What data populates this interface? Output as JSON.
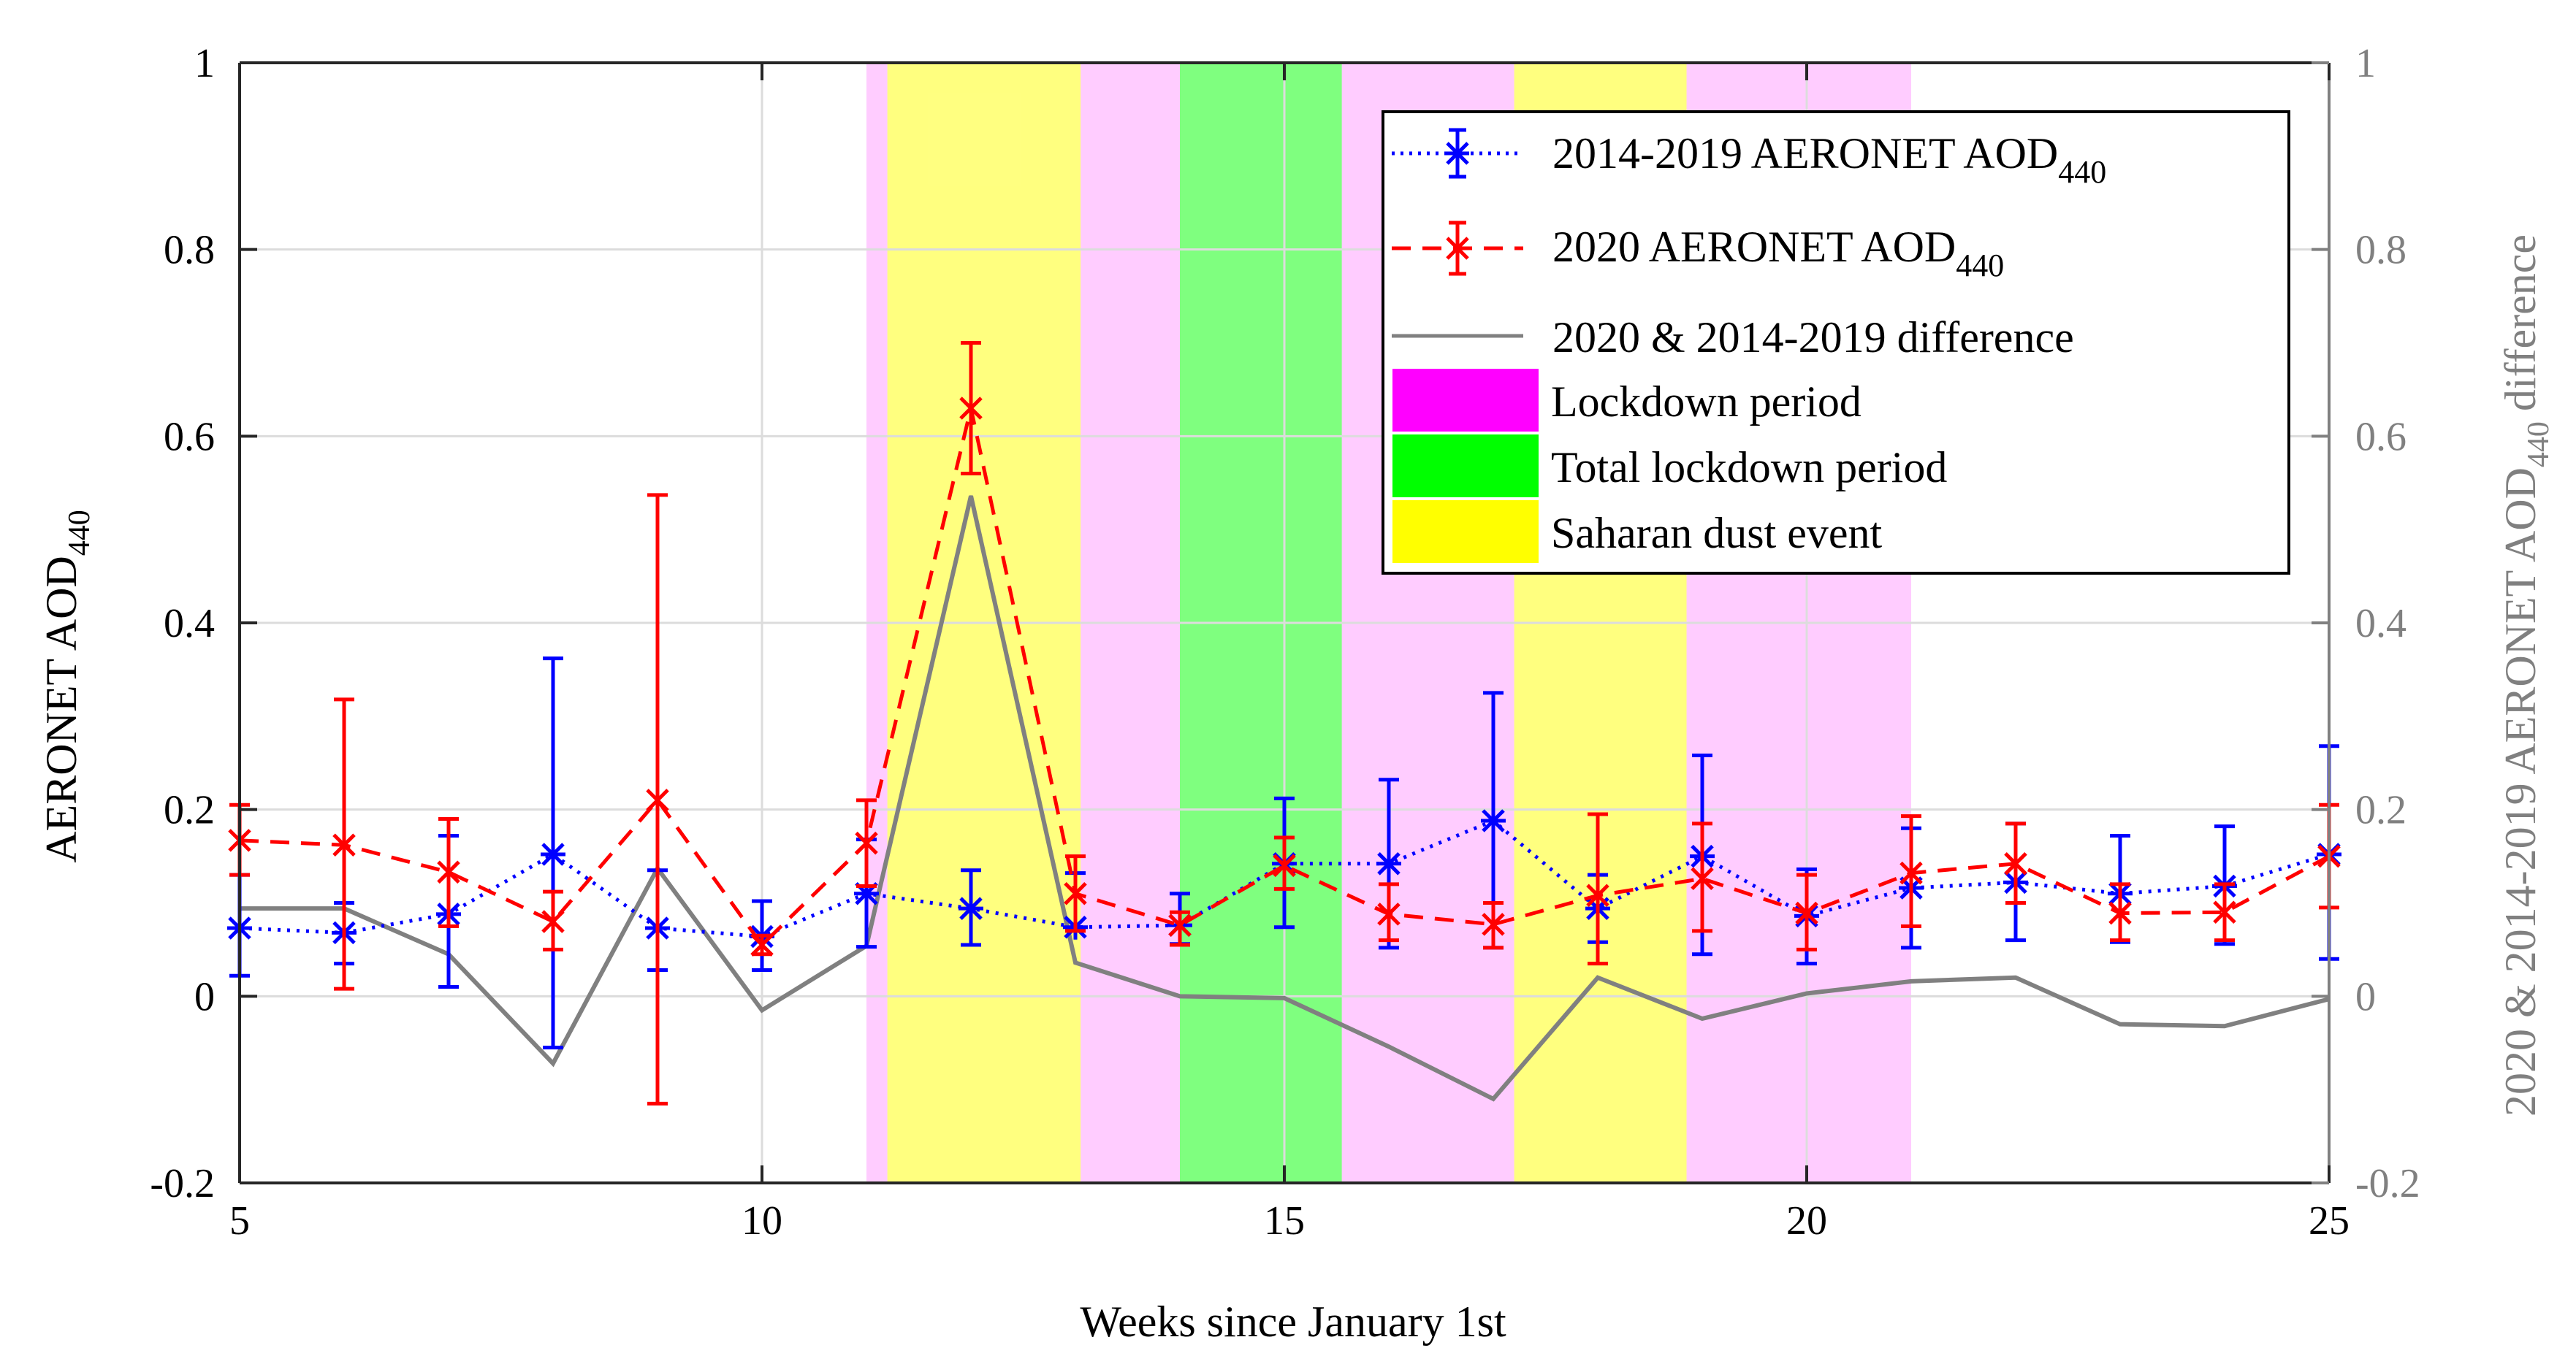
{
  "chart_data": {
    "type": "line",
    "xlabel": "Weeks since January 1st",
    "ylabel": "AERONET AOD",
    "ylabel_sub": "440",
    "y2label": "2020 & 2014-2019 AERONET AOD",
    "y2label_sub": "440",
    "y2label_suffix": "difference",
    "xlim": [
      5,
      25
    ],
    "ylim": [
      -0.2,
      1
    ],
    "y2lim": [
      -0.2,
      1
    ],
    "xticks": [
      "5",
      "10",
      "15",
      "20",
      "25"
    ],
    "yticks": [
      "-0.2",
      "0",
      "0.2",
      "0.4",
      "0.6",
      "0.8",
      "1"
    ],
    "y2ticks": [
      "-0.2",
      "0",
      "0.2",
      "0.4",
      "0.6",
      "0.8",
      "1"
    ],
    "grid": true,
    "legend_position": "top-right",
    "shaded_regions": [
      {
        "name": "Lockdown period",
        "color": "#ff00ff",
        "from": 11.0,
        "to": 11.2
      },
      {
        "name": "Saharan dust event",
        "color": "#ffff00",
        "from": 11.2,
        "to": 13.05
      },
      {
        "name": "Lockdown period",
        "color": "#ff00ff",
        "from": 13.05,
        "to": 14.0
      },
      {
        "name": "Total lockdown period",
        "color": "#00ff00",
        "from": 14.0,
        "to": 15.55
      },
      {
        "name": "Lockdown period",
        "color": "#ff00ff",
        "from": 15.55,
        "to": 17.2
      },
      {
        "name": "Saharan dust event",
        "color": "#ffff00",
        "from": 17.2,
        "to": 18.85
      },
      {
        "name": "Lockdown period",
        "color": "#ff00ff",
        "from": 18.85,
        "to": 21.0
      }
    ],
    "series": [
      {
        "name": "2014-2019 AERONET AOD",
        "name_sub": "440",
        "color": "#0000ff",
        "style": "dotted",
        "marker": "asterisk",
        "x": [
          5,
          6,
          7,
          8,
          9,
          10,
          11,
          12,
          13,
          14,
          15,
          16,
          17,
          18,
          19,
          20,
          21,
          22,
          23,
          24,
          25
        ],
        "values": [
          0.073,
          0.068,
          0.088,
          0.152,
          0.073,
          0.064,
          0.11,
          0.094,
          0.074,
          0.076,
          0.142,
          0.142,
          0.188,
          0.094,
          0.15,
          0.086,
          0.116,
          0.122,
          0.11,
          0.118,
          0.152
        ],
        "err_low": [
          0.022,
          0.035,
          0.01,
          -0.055,
          0.028,
          0.028,
          0.053,
          0.055,
          0.072,
          0.056,
          0.074,
          0.052,
          0.052,
          0.058,
          0.045,
          0.035,
          0.052,
          0.06,
          0.058,
          0.056,
          0.04
        ],
        "err_high": [
          0.13,
          0.1,
          0.172,
          0.362,
          0.135,
          0.102,
          0.168,
          0.135,
          0.132,
          0.11,
          0.212,
          0.232,
          0.325,
          0.13,
          0.258,
          0.136,
          0.18,
          0.185,
          0.172,
          0.182,
          0.268
        ]
      },
      {
        "name": "2020 AERONET AOD",
        "name_sub": "440",
        "color": "#ff0000",
        "style": "dashed",
        "marker": "x",
        "x": [
          5,
          6,
          7,
          8,
          9,
          10,
          11,
          12,
          13,
          14,
          15,
          16,
          17,
          18,
          19,
          20,
          21,
          22,
          23,
          24,
          25
        ],
        "values": [
          0.167,
          0.162,
          0.133,
          0.08,
          0.21,
          0.055,
          0.164,
          0.63,
          0.11,
          0.076,
          0.14,
          0.088,
          0.077,
          0.108,
          0.126,
          0.089,
          0.132,
          0.142,
          0.089,
          0.09,
          0.15
        ],
        "err_low": [
          0.13,
          0.008,
          0.075,
          0.05,
          -0.115,
          0.045,
          0.118,
          0.56,
          0.07,
          0.055,
          0.115,
          0.06,
          0.052,
          0.035,
          0.07,
          0.05,
          0.075,
          0.1,
          0.06,
          0.06,
          0.095
        ],
        "err_high": [
          0.205,
          0.318,
          0.19,
          0.112,
          0.537,
          0.065,
          0.21,
          0.7,
          0.15,
          0.09,
          0.17,
          0.12,
          0.1,
          0.195,
          0.185,
          0.13,
          0.193,
          0.185,
          0.12,
          0.12,
          0.205
        ]
      },
      {
        "name": "2020 & 2014-2019 difference",
        "color": "#808080",
        "style": "solid",
        "axis": "right",
        "x": [
          5,
          6,
          7,
          8,
          9,
          10,
          11,
          12,
          13,
          14,
          15,
          16,
          17,
          18,
          19,
          20,
          21,
          22,
          23,
          24,
          25
        ],
        "values": [
          0.094,
          0.094,
          0.045,
          -0.072,
          0.137,
          -0.015,
          0.054,
          0.536,
          0.036,
          0.0,
          -0.002,
          -0.054,
          -0.11,
          0.02,
          -0.024,
          0.003,
          0.016,
          0.02,
          -0.03,
          -0.032,
          -0.003
        ]
      }
    ],
    "legend": {
      "items": [
        {
          "label": "2014-2019 AERONET AOD",
          "sub": "440"
        },
        {
          "label": "2020 AERONET AOD",
          "sub": "440"
        },
        {
          "label": "2020 & 2014-2019 difference",
          "sub": ""
        },
        {
          "label": "Lockdown period",
          "sub": ""
        },
        {
          "label": "Total lockdown period",
          "sub": ""
        },
        {
          "label": "Saharan dust event",
          "sub": ""
        }
      ]
    }
  }
}
